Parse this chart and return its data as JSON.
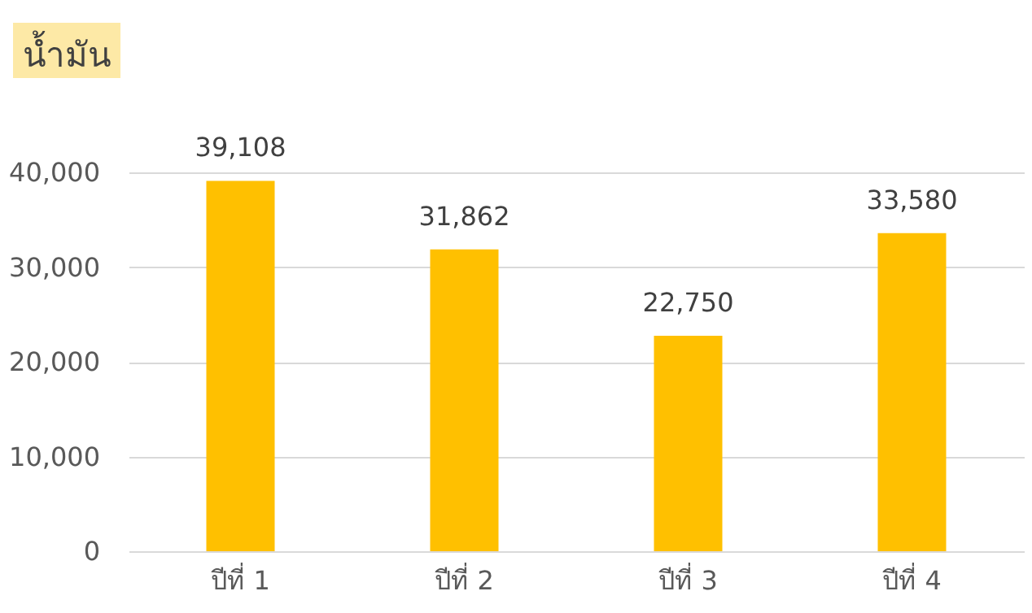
{
  "chart_data": {
    "type": "bar",
    "title": "น้ำมัน",
    "categories": [
      "ปีที่ 1",
      "ปีที่ 2",
      "ปีที่ 3",
      "ปีที่ 4"
    ],
    "values": [
      39108,
      31862,
      22750,
      33580
    ],
    "color": "#ffc000",
    "value_labels": [
      "39,108",
      "31,862",
      "22,750",
      "33,580"
    ],
    "ylim": [
      0,
      40000
    ],
    "yticks": [
      0,
      {
        "value": 10000,
        "label": "10,000"
      },
      {
        "value": 20000,
        "label": "20,000"
      },
      {
        "value": 30000,
        "label": "30,000"
      },
      {
        "value": 40000,
        "label": "40,000"
      }
    ],
    "grid": "y"
  }
}
